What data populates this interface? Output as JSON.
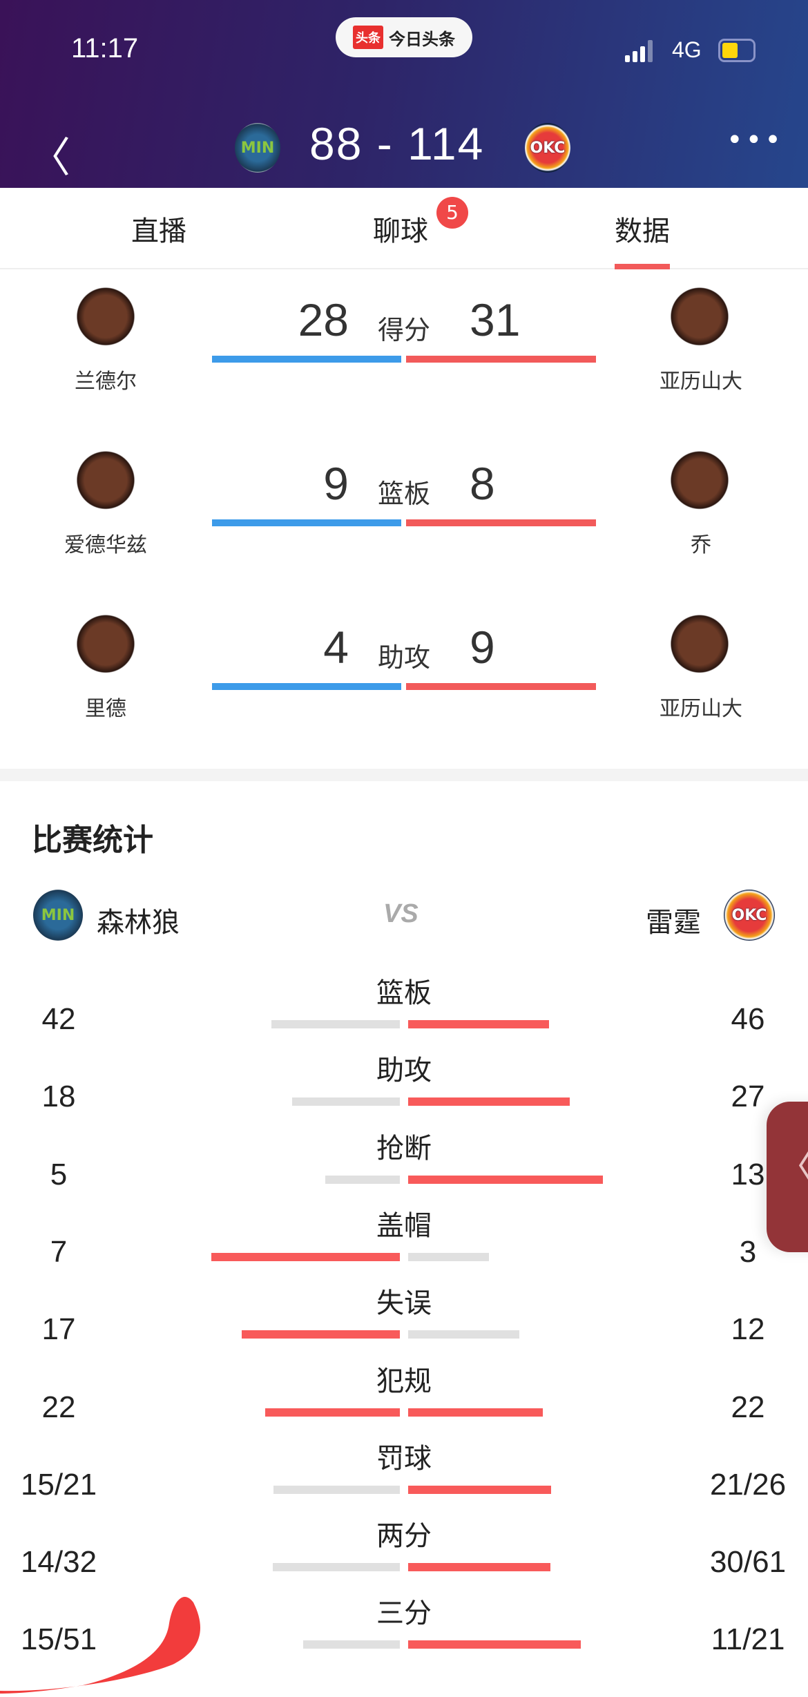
{
  "status_bar": {
    "time": "11:17",
    "app_pill_logo": "头条",
    "app_pill_name": "今日头条",
    "network": "4G",
    "battery_level": 0.45,
    "battery_color": "#ffd60a"
  },
  "header": {
    "home_team_logo": "MIN",
    "away_team_logo": "OKC",
    "score_text": "88 - 114",
    "home_score": 88,
    "away_score": 114
  },
  "tabs": [
    {
      "label": "直播"
    },
    {
      "label": "聊球",
      "badge": "5"
    },
    {
      "label": "数据",
      "active": true
    }
  ],
  "leaders": [
    {
      "category": "得分",
      "home_player": "兰德尔",
      "home_value": "28",
      "away_player": "亚历山大",
      "away_value": "31"
    },
    {
      "category": "篮板",
      "home_player": "爱德华兹",
      "home_value": "9",
      "away_player": "乔",
      "away_value": "8"
    },
    {
      "category": "助攻",
      "home_player": "里德",
      "home_value": "4",
      "away_player": "亚历山大",
      "away_value": "9"
    }
  ],
  "section_title": "比赛统计",
  "teams": {
    "home": "森林狼",
    "home_logo": "MIN",
    "vs": "VS",
    "away": "雷霆",
    "away_logo": "OKC"
  },
  "stats": [
    {
      "label": "篮板",
      "home": "42",
      "away": "46",
      "home_share": 0.477
    },
    {
      "label": "助攻",
      "home": "18",
      "away": "27",
      "home_share": 0.4
    },
    {
      "label": "抢断",
      "home": "5",
      "away": "13",
      "home_share": 0.278
    },
    {
      "label": "盖帽",
      "home": "7",
      "away": "3",
      "home_share": 0.7
    },
    {
      "label": "失误",
      "home": "17",
      "away": "12",
      "home_share": 0.586
    },
    {
      "label": "犯规",
      "home": "22",
      "away": "22",
      "home_share": 0.5
    },
    {
      "label": "罚球",
      "home": "15/21",
      "away": "21/26",
      "home_share": 0.469
    },
    {
      "label": "两分",
      "home": "14/32",
      "away": "30/61",
      "home_share": 0.471
    },
    {
      "label": "三分",
      "home": "15/51",
      "away": "11/21",
      "home_share": 0.36
    }
  ],
  "colors": {
    "home_leader": "#3d9be9",
    "away_leader": "#f25a5a",
    "bar_high": "#f85a5a",
    "bar_low": "#e0e0e0",
    "side_button": "#933438"
  },
  "side_button_icon": "chevron-left-icon"
}
